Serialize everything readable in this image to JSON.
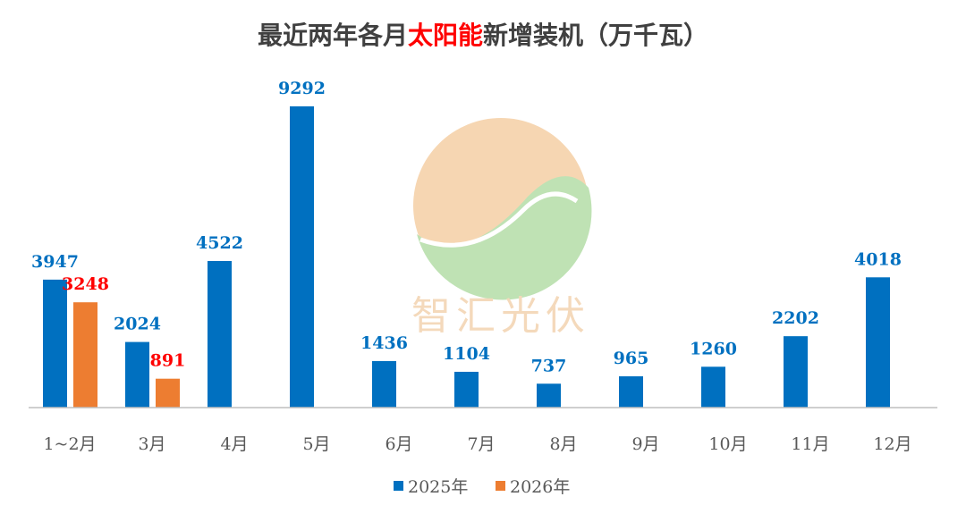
{
  "chart_data": {
    "type": "bar",
    "title_parts": [
      "最近两年各月",
      "太阳能",
      "新增装机（万千瓦）"
    ],
    "categories": [
      "1~2月",
      "3月",
      "4月",
      "5月",
      "6月",
      "7月",
      "8月",
      "9月",
      "10月",
      "11月",
      "12月"
    ],
    "series": [
      {
        "name": "2025年",
        "color": "#0070C0",
        "label_color": "#0070C0",
        "values": [
          3947,
          2024,
          4522,
          9292,
          1436,
          1104,
          737,
          965,
          1260,
          2202,
          4018
        ]
      },
      {
        "name": "2026年",
        "color": "#ED7D31",
        "label_color": "#FF0000",
        "values": [
          3248,
          891,
          null,
          null,
          null,
          null,
          null,
          null,
          null,
          null,
          null
        ]
      }
    ],
    "ylim": [
      0,
      9292
    ],
    "grid": false,
    "legend": "bottom",
    "watermark": {
      "text": "智汇光伏",
      "colors": [
        "#F5CFA5",
        "#A8D8A0"
      ]
    }
  }
}
